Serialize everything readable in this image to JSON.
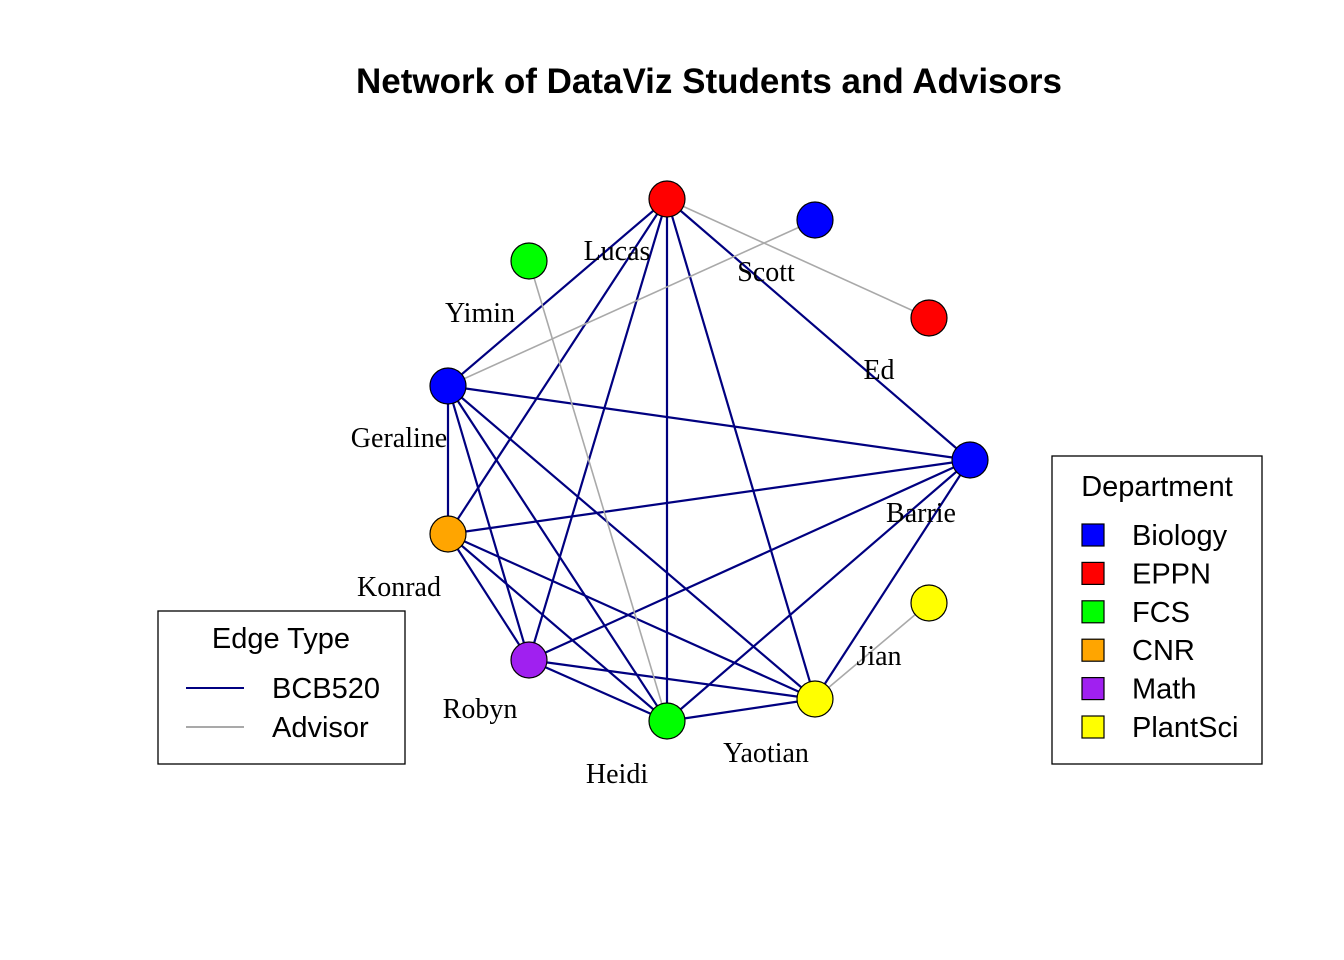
{
  "title": "Network of DataViz Students and Advisors",
  "colors": {
    "Biology": "#0000FF",
    "EPPN": "#FF0000",
    "FCS": "#00FF00",
    "CNR": "#FFA500",
    "Math": "#A020F0",
    "PlantSci": "#FFFF00",
    "BCB520": "#000080",
    "Advisor": "#A9A9A9"
  },
  "nodes": [
    {
      "name": "Lucas",
      "department": "EPPN"
    },
    {
      "name": "Scott",
      "department": "Biology"
    },
    {
      "name": "Ed",
      "department": "EPPN"
    },
    {
      "name": "Barrie",
      "department": "Biology"
    },
    {
      "name": "Jian",
      "department": "PlantSci"
    },
    {
      "name": "Yaotian",
      "department": "PlantSci"
    },
    {
      "name": "Heidi",
      "department": "FCS"
    },
    {
      "name": "Robyn",
      "department": "Math"
    },
    {
      "name": "Konrad",
      "department": "CNR"
    },
    {
      "name": "Geraline",
      "department": "Biology"
    },
    {
      "name": "Yimin",
      "department": "FCS"
    }
  ],
  "edges": [
    {
      "from": "Lucas",
      "to": "Barrie",
      "type": "BCB520"
    },
    {
      "from": "Lucas",
      "to": "Yaotian",
      "type": "BCB520"
    },
    {
      "from": "Lucas",
      "to": "Heidi",
      "type": "BCB520"
    },
    {
      "from": "Lucas",
      "to": "Robyn",
      "type": "BCB520"
    },
    {
      "from": "Lucas",
      "to": "Konrad",
      "type": "BCB520"
    },
    {
      "from": "Lucas",
      "to": "Geraline",
      "type": "BCB520"
    },
    {
      "from": "Geraline",
      "to": "Barrie",
      "type": "BCB520"
    },
    {
      "from": "Geraline",
      "to": "Yaotian",
      "type": "BCB520"
    },
    {
      "from": "Geraline",
      "to": "Heidi",
      "type": "BCB520"
    },
    {
      "from": "Geraline",
      "to": "Robyn",
      "type": "BCB520"
    },
    {
      "from": "Geraline",
      "to": "Konrad",
      "type": "BCB520"
    },
    {
      "from": "Konrad",
      "to": "Barrie",
      "type": "BCB520"
    },
    {
      "from": "Konrad",
      "to": "Yaotian",
      "type": "BCB520"
    },
    {
      "from": "Konrad",
      "to": "Heidi",
      "type": "BCB520"
    },
    {
      "from": "Konrad",
      "to": "Robyn",
      "type": "BCB520"
    },
    {
      "from": "Robyn",
      "to": "Barrie",
      "type": "BCB520"
    },
    {
      "from": "Robyn",
      "to": "Yaotian",
      "type": "BCB520"
    },
    {
      "from": "Robyn",
      "to": "Heidi",
      "type": "BCB520"
    },
    {
      "from": "Heidi",
      "to": "Barrie",
      "type": "BCB520"
    },
    {
      "from": "Heidi",
      "to": "Yaotian",
      "type": "BCB520"
    },
    {
      "from": "Yaotian",
      "to": "Barrie",
      "type": "BCB520"
    },
    {
      "from": "Lucas",
      "to": "Ed",
      "type": "Advisor"
    },
    {
      "from": "Geraline",
      "to": "Scott",
      "type": "Advisor"
    },
    {
      "from": "Yimin",
      "to": "Heidi",
      "type": "Advisor"
    },
    {
      "from": "Yaotian",
      "to": "Jian",
      "type": "Advisor"
    }
  ],
  "legend_edges": {
    "title": "Edge Type",
    "items": [
      {
        "label": "BCB520",
        "color": "#000080"
      },
      {
        "label": "Advisor",
        "color": "#A9A9A9"
      }
    ]
  },
  "legend_departments": {
    "title": "Department",
    "items": [
      {
        "label": "Biology",
        "color": "#0000FF"
      },
      {
        "label": "EPPN",
        "color": "#FF0000"
      },
      {
        "label": "FCS",
        "color": "#00FF00"
      },
      {
        "label": "CNR",
        "color": "#FFA500"
      },
      {
        "label": "Math",
        "color": "#A020F0"
      },
      {
        "label": "PlantSci",
        "color": "#FFFF00"
      }
    ]
  }
}
